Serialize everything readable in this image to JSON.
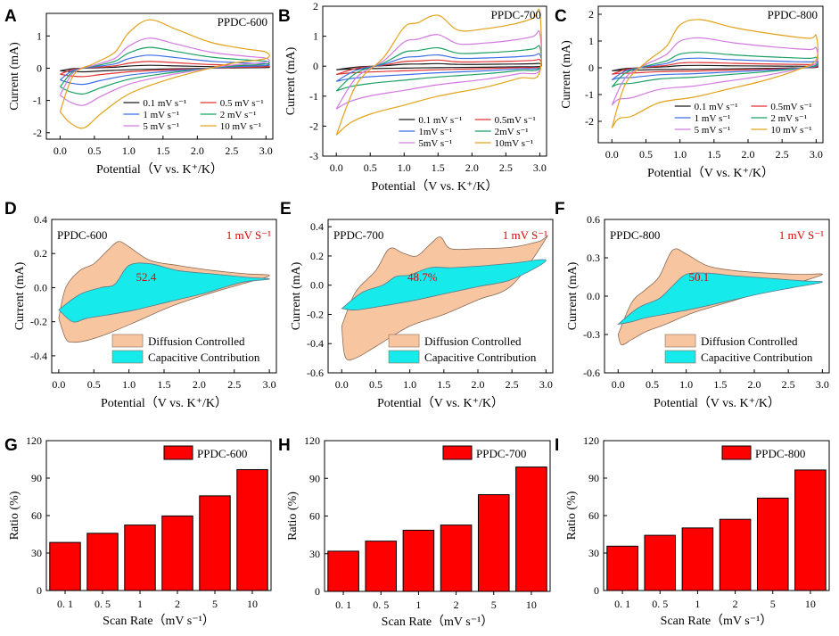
{
  "colors": {
    "c01": "#1a1a1a",
    "c05": "#e23232",
    "c1": "#3c6ee6",
    "c2": "#1aa063",
    "c5": "#d27adf",
    "c10": "#e3a21a",
    "diffusion": "#f7c6a0",
    "capacitive": "#17eaea",
    "bar": "#ff0000"
  },
  "chart_data": [
    {
      "panel": "A",
      "type": "line",
      "title": "PPDC-600",
      "xlabel": "Potential（V vs. K⁺/K）",
      "ylabel": "Current (mA)",
      "xlim": [
        -0.2,
        3.1
      ],
      "ylim": [
        -2.2,
        1.7
      ],
      "xticks": [
        "0.0",
        "0.5",
        "1.0",
        "1.5",
        "2.0",
        "2.5",
        "3.0"
      ],
      "yticks": [
        "-2",
        "-1",
        "0",
        "1"
      ],
      "series": [
        {
          "name": "0.1 mV s⁻¹",
          "legend_label": "0.1 mV s-1",
          "color_key": "c01",
          "amp": 0.06
        },
        {
          "name": "0.5 mV s⁻¹",
          "legend_label": "0.5 mV s-1",
          "color_key": "c05",
          "amp": 0.14
        },
        {
          "name": "1 mV s⁻¹",
          "legend_label": "1 mV s-1",
          "color_key": "c1",
          "amp": 0.27
        },
        {
          "name": "2 mV s⁻¹",
          "legend_label": "2 mV s-1",
          "color_key": "c2",
          "amp": 0.43
        },
        {
          "name": "5 mV s⁻¹",
          "legend_label": "5 mV s-1",
          "color_key": "c5",
          "amp": 0.62
        },
        {
          "name": "10 mV s⁻¹",
          "legend_label": "10 mV s-1",
          "color_key": "c10",
          "amp": 1.0
        }
      ],
      "shape": {
        "ox": [
          0.0,
          0.2,
          0.5,
          0.8,
          1.0,
          1.3,
          1.7,
          2.2,
          2.7,
          3.0
        ],
        "oy": [
          -1.35,
          -0.2,
          0.15,
          0.5,
          1.1,
          1.5,
          1.2,
          0.8,
          0.6,
          0.5
        ],
        "rx": [
          3.0,
          2.5,
          2.0,
          1.5,
          1.0,
          0.6,
          0.35,
          0.15,
          0.0
        ],
        "ry": [
          0.3,
          0.15,
          -0.1,
          -0.4,
          -0.8,
          -1.4,
          -1.85,
          -1.7,
          -1.35
        ]
      }
    },
    {
      "panel": "B",
      "type": "line",
      "title": "PPDC-700",
      "xlabel": "Potential（V vs. K⁺/K）",
      "ylabel": "Current (mA)",
      "xlim": [
        -0.2,
        3.1
      ],
      "ylim": [
        -3.0,
        2.0
      ],
      "xticks": [
        "0.0",
        "0.5",
        "1.0",
        "1.5",
        "2.0",
        "2.5",
        "3.0"
      ],
      "yticks": [
        "-3",
        "-2",
        "-1",
        "0",
        "1",
        "2"
      ],
      "series": [
        {
          "name": "0.1 mV s⁻¹",
          "legend_label": "0.1 mV s-1",
          "color_key": "c01",
          "amp": 0.05
        },
        {
          "name": "0.5mV s⁻¹",
          "legend_label": "0.5mV s-1",
          "color_key": "c05",
          "amp": 0.12
        },
        {
          "name": "1mV s⁻¹",
          "legend_label": "1mV s-1",
          "color_key": "c1",
          "amp": 0.22
        },
        {
          "name": "2mV s⁻¹",
          "legend_label": "2mV s-1",
          "color_key": "c2",
          "amp": 0.36
        },
        {
          "name": "5mV s⁻¹",
          "legend_label": "5mV s-1",
          "color_key": "c5",
          "amp": 0.62
        },
        {
          "name": "10mV s⁻¹",
          "legend_label": "10mV s-1",
          "color_key": "c10",
          "amp": 1.0
        }
      ],
      "shape": {
        "ox": [
          0.0,
          0.3,
          0.7,
          1.0,
          1.2,
          1.5,
          1.8,
          2.2,
          2.6,
          2.9,
          3.0
        ],
        "oy": [
          -2.3,
          -0.6,
          0.3,
          1.3,
          1.45,
          1.7,
          1.2,
          1.25,
          1.4,
          1.6,
          1.8
        ],
        "rx": [
          3.0,
          2.7,
          2.2,
          1.5,
          1.0,
          0.5,
          0.2,
          0.0
        ],
        "ry": [
          -0.2,
          -0.4,
          -0.7,
          -1.0,
          -1.3,
          -1.6,
          -1.9,
          -2.3
        ]
      }
    },
    {
      "panel": "C",
      "type": "line",
      "title": "PPDC-800",
      "xlabel": "Potential（V vs. K⁺/K）",
      "ylabel": "Current (mA)",
      "xlim": [
        -0.2,
        3.1
      ],
      "ylim": [
        -2.8,
        2.3
      ],
      "xticks": [
        "0.0",
        "0.5",
        "1.0",
        "1.5",
        "2.0",
        "2.5",
        "3.0"
      ],
      "yticks": [
        "-2",
        "-1",
        "0",
        "1",
        "2"
      ],
      "series": [
        {
          "name": "0.1 mV s⁻¹",
          "legend_label": "0.1 mV s-1",
          "color_key": "c01",
          "amp": 0.05
        },
        {
          "name": "0.5mV s⁻¹",
          "legend_label": "0.5mV s-1",
          "color_key": "c05",
          "amp": 0.11
        },
        {
          "name": "1 mV s⁻¹",
          "legend_label": "1 mV s-1",
          "color_key": "c1",
          "amp": 0.2
        },
        {
          "name": "2 mV s⁻¹",
          "legend_label": "2 mV s-1",
          "color_key": "c2",
          "amp": 0.32
        },
        {
          "name": "5 mV s⁻¹",
          "legend_label": "5 mV s-1",
          "color_key": "c5",
          "amp": 0.62
        },
        {
          "name": "10 mV s⁻¹",
          "legend_label": "10 mV s-1",
          "color_key": "c10",
          "amp": 1.0
        }
      ],
      "shape": {
        "ox": [
          0.0,
          0.2,
          0.5,
          0.8,
          1.0,
          1.3,
          1.8,
          2.4,
          2.9,
          3.0
        ],
        "oy": [
          -2.25,
          -0.6,
          0.2,
          0.8,
          1.6,
          1.8,
          1.5,
          1.25,
          1.1,
          1.2
        ],
        "rx": [
          3.0,
          2.7,
          2.2,
          1.7,
          1.2,
          0.7,
          0.3,
          0.1,
          0.0
        ],
        "ry": [
          0.3,
          -0.1,
          -0.5,
          -0.8,
          -1.1,
          -1.3,
          -1.8,
          -1.9,
          -2.25
        ]
      }
    },
    {
      "panel": "D",
      "type": "area",
      "title": "PPDC-600",
      "rate_label": "1 mV S⁻¹",
      "capacitive_label": "52.4",
      "xlabel": "Potential（V vs. K⁺/K）",
      "ylabel": "Current (mA)",
      "xlim": [
        -0.1,
        3.1
      ],
      "ylim": [
        -0.5,
        0.4
      ],
      "xticks": [
        "0.0",
        "0.5",
        "1.0",
        "1.5",
        "2.0",
        "2.5",
        "3.0"
      ],
      "yticks": [
        "-0.4",
        "-0.2",
        "0.0",
        "0.2",
        "0.4"
      ],
      "legend": [
        "Diffusion Controlled",
        "Capacitive Contribution"
      ],
      "outer_x": [
        0.0,
        0.1,
        0.3,
        0.5,
        0.7,
        0.85,
        1.0,
        1.3,
        1.7,
        2.2,
        2.7,
        3.0,
        2.6,
        2.1,
        1.6,
        1.1,
        0.7,
        0.4,
        0.2,
        0.1,
        0.0
      ],
      "outer_y": [
        -0.18,
        0.0,
        0.1,
        0.14,
        0.22,
        0.27,
        0.24,
        0.16,
        0.13,
        0.1,
        0.08,
        0.07,
        0.02,
        -0.04,
        -0.11,
        -0.2,
        -0.27,
        -0.31,
        -0.32,
        -0.3,
        -0.18
      ],
      "inner_x": [
        0.0,
        0.3,
        0.6,
        0.8,
        1.0,
        1.3,
        1.7,
        2.2,
        2.7,
        3.0,
        2.6,
        2.1,
        1.6,
        1.1,
        0.7,
        0.4,
        0.2,
        0.0
      ],
      "inner_y": [
        -0.13,
        -0.04,
        0.0,
        0.02,
        0.13,
        0.14,
        0.1,
        0.08,
        0.06,
        0.05,
        0.03,
        -0.03,
        -0.08,
        -0.13,
        -0.16,
        -0.18,
        -0.2,
        -0.13
      ]
    },
    {
      "panel": "E",
      "type": "area",
      "title": "PPDC-700",
      "rate_label": "1 mV S⁻¹",
      "capacitive_label": "48.7%",
      "xlabel": "Potential（V vs. K⁺/K）",
      "ylabel": "Current (mA)",
      "xlim": [
        -0.2,
        3.1
      ],
      "ylim": [
        -0.6,
        0.45
      ],
      "xticks": [
        "0.0",
        "0.5",
        "1.0",
        "1.5",
        "2.0",
        "2.5",
        "3.0"
      ],
      "yticks": [
        "-0.6",
        "-0.4",
        "-0.2",
        "0.0",
        "0.2",
        "0.4"
      ],
      "legend": [
        "Diffusion Controlled",
        "Capacitive Contribution"
      ],
      "outer_x": [
        0.0,
        0.2,
        0.5,
        0.7,
        0.9,
        1.1,
        1.3,
        1.45,
        1.6,
        2.0,
        2.5,
        2.9,
        3.0,
        2.5,
        2.0,
        1.5,
        1.0,
        0.5,
        0.2,
        0.05,
        0.0
      ],
      "outer_y": [
        -0.28,
        -0.05,
        0.1,
        0.25,
        0.22,
        0.2,
        0.28,
        0.33,
        0.25,
        0.25,
        0.26,
        0.3,
        0.32,
        0.0,
        -0.1,
        -0.2,
        -0.28,
        -0.42,
        -0.5,
        -0.49,
        -0.28
      ],
      "inner_x": [
        0.0,
        0.3,
        0.6,
        0.8,
        1.0,
        1.3,
        1.6,
        2.0,
        2.5,
        3.0,
        2.5,
        2.0,
        1.5,
        1.0,
        0.5,
        0.2,
        0.0
      ],
      "inner_y": [
        -0.16,
        -0.05,
        0.0,
        0.06,
        0.07,
        0.12,
        0.12,
        0.13,
        0.15,
        0.17,
        0.04,
        -0.01,
        -0.06,
        -0.11,
        -0.15,
        -0.17,
        -0.16
      ]
    },
    {
      "panel": "F",
      "type": "area",
      "title": "PPDC-800",
      "rate_label": "1 mV S⁻¹",
      "capacitive_label": "50.1",
      "xlabel": "Potential（V vs. K⁺/K）",
      "ylabel": "Current (mA)",
      "xlim": [
        -0.2,
        3.1
      ],
      "ylim": [
        -0.6,
        0.6
      ],
      "xticks": [
        "0.0",
        "0.5",
        "1.0",
        "1.5",
        "2.0",
        "2.5",
        "3.0"
      ],
      "yticks": [
        "-0.6",
        "-0.3",
        "0.0",
        "0.3",
        "0.6"
      ],
      "legend": [
        "Diffusion Controlled",
        "Capacitive Contribution"
      ],
      "outer_x": [
        0.0,
        0.2,
        0.4,
        0.6,
        0.8,
        1.0,
        1.3,
        1.7,
        2.2,
        2.7,
        3.0,
        2.6,
        2.1,
        1.6,
        1.1,
        0.7,
        0.4,
        0.2,
        0.05,
        0.0
      ],
      "outer_y": [
        -0.3,
        -0.05,
        0.05,
        0.15,
        0.36,
        0.33,
        0.24,
        0.2,
        0.18,
        0.17,
        0.17,
        0.1,
        0.03,
        -0.05,
        -0.13,
        -0.22,
        -0.28,
        -0.34,
        -0.38,
        -0.3
      ],
      "inner_x": [
        0.0,
        0.3,
        0.6,
        0.8,
        1.0,
        1.3,
        1.7,
        2.2,
        2.7,
        3.0,
        2.6,
        2.1,
        1.6,
        1.1,
        0.7,
        0.4,
        0.2,
        0.0
      ],
      "inner_y": [
        -0.22,
        -0.09,
        -0.02,
        0.08,
        0.17,
        0.18,
        0.16,
        0.14,
        0.12,
        0.11,
        0.07,
        0.02,
        -0.04,
        -0.1,
        -0.14,
        -0.17,
        -0.2,
        -0.22
      ]
    },
    {
      "panel": "G",
      "type": "bar",
      "title": "PPDC-600",
      "categories": [
        "0. 1",
        "0. 5",
        "1",
        "2",
        "5",
        "10"
      ],
      "values": [
        38.5,
        45.8,
        52.4,
        59.7,
        75.8,
        96.8
      ],
      "xlabel": "Scan Rate（mV s⁻¹）",
      "ylabel": "Ratio (%)",
      "ylim": [
        0,
        120
      ],
      "yticks": [
        "0",
        "30",
        "60",
        "90",
        "120"
      ]
    },
    {
      "panel": "H",
      "type": "bar",
      "title": "PPDC-700",
      "categories": [
        "0. 1",
        "0. 5",
        "1",
        "2",
        "5",
        "10"
      ],
      "values": [
        32.0,
        40.0,
        48.7,
        52.8,
        77.0,
        99.0
      ],
      "xlabel": "Scan Rate（mV s⁻¹）",
      "ylabel": "Ratio (%)",
      "ylim": [
        0,
        120
      ],
      "yticks": [
        "0",
        "30",
        "60",
        "90",
        "120"
      ]
    },
    {
      "panel": "I",
      "type": "bar",
      "title": "PPDC-800",
      "categories": [
        "0. 1",
        "0. 5",
        "1",
        "2",
        "5",
        "10"
      ],
      "values": [
        35.5,
        44.2,
        50.1,
        57.0,
        74.0,
        96.5
      ],
      "xlabel": "Scan Rate（mV s⁻¹）",
      "ylabel": "Ratio (%)",
      "ylim": [
        0,
        120
      ],
      "yticks": [
        "0",
        "30",
        "60",
        "90",
        "120"
      ]
    }
  ]
}
